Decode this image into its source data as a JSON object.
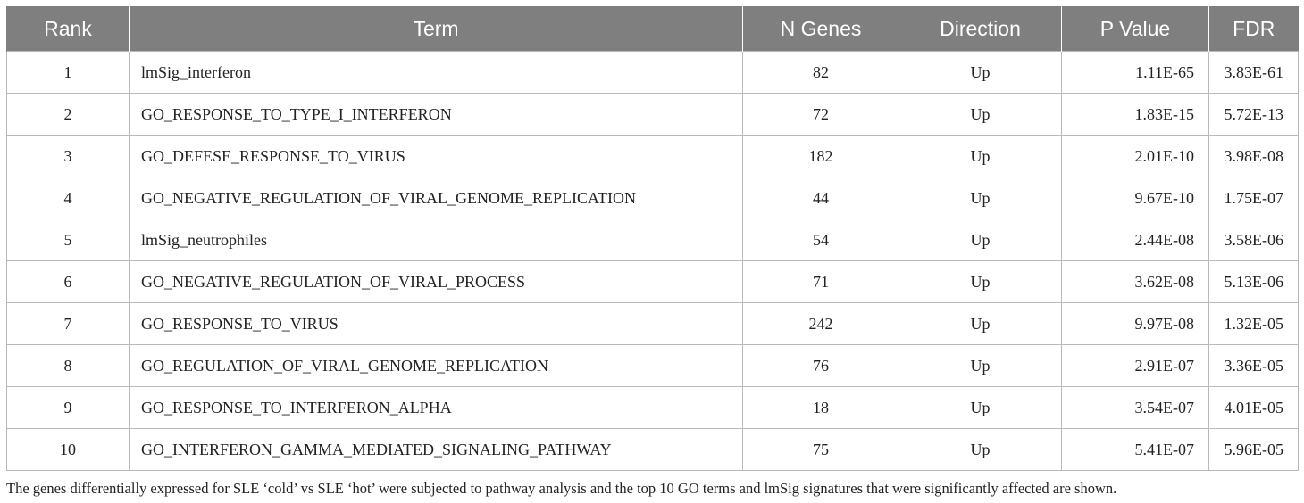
{
  "table": {
    "columns": [
      "Rank",
      "Term",
      "N Genes",
      "Direction",
      "P Value",
      "FDR"
    ],
    "rows": [
      {
        "rank": "1",
        "term": "lmSig_interferon",
        "n_genes": "82",
        "direction": "Up",
        "p_value": "1.11E-65",
        "fdr": "3.83E-61"
      },
      {
        "rank": "2",
        "term": "GO_RESPONSE_TO_TYPE_I_INTERFERON",
        "n_genes": "72",
        "direction": "Up",
        "p_value": "1.83E-15",
        "fdr": "5.72E-13"
      },
      {
        "rank": "3",
        "term": "GO_DEFESE_RESPONSE_TO_VIRUS",
        "n_genes": "182",
        "direction": "Up",
        "p_value": "2.01E-10",
        "fdr": "3.98E-08"
      },
      {
        "rank": "4",
        "term": "GO_NEGATIVE_REGULATION_OF_VIRAL_GENOME_REPLICATION",
        "n_genes": "44",
        "direction": "Up",
        "p_value": "9.67E-10",
        "fdr": "1.75E-07"
      },
      {
        "rank": "5",
        "term": "lmSig_neutrophiles",
        "n_genes": "54",
        "direction": "Up",
        "p_value": "2.44E-08",
        "fdr": "3.58E-06"
      },
      {
        "rank": "6",
        "term": "GO_NEGATIVE_REGULATION_OF_VIRAL_PROCESS",
        "n_genes": "71",
        "direction": "Up",
        "p_value": "3.62E-08",
        "fdr": "5.13E-06"
      },
      {
        "rank": "7",
        "term": "GO_RESPONSE_TO_VIRUS",
        "n_genes": "242",
        "direction": "Up",
        "p_value": "9.97E-08",
        "fdr": "1.32E-05"
      },
      {
        "rank": "8",
        "term": "GO_REGULATION_OF_VIRAL_GENOME_REPLICATION",
        "n_genes": "76",
        "direction": "Up",
        "p_value": "2.91E-07",
        "fdr": "3.36E-05"
      },
      {
        "rank": "9",
        "term": "GO_RESPONSE_TO_INTERFERON_ALPHA",
        "n_genes": "18",
        "direction": "Up",
        "p_value": "3.54E-07",
        "fdr": "4.01E-05"
      },
      {
        "rank": "10",
        "term": "GO_INTERFERON_GAMMA_MEDIATED_SIGNALING_PATHWAY",
        "n_genes": "75",
        "direction": "Up",
        "p_value": "5.41E-07",
        "fdr": "5.96E-05"
      }
    ]
  },
  "footnote": "The genes differentially expressed for SLE ‘cold’ vs SLE ‘hot’ were subjected to pathway analysis and the top 10 GO terms and lmSig signatures that were significantly affected are shown.",
  "colors": {
    "header_bg": "#7f7f7f",
    "header_text": "#ffffff",
    "border": "#b9b9b9"
  }
}
